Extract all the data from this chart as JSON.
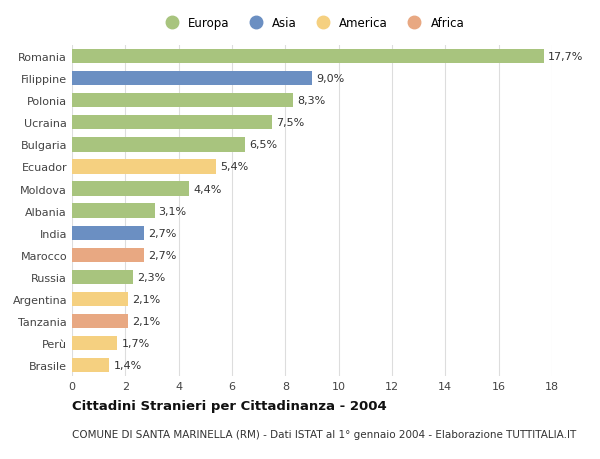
{
  "countries": [
    "Romania",
    "Filippine",
    "Polonia",
    "Ucraina",
    "Bulgaria",
    "Ecuador",
    "Moldova",
    "Albania",
    "India",
    "Marocco",
    "Russia",
    "Argentina",
    "Tanzania",
    "Perù",
    "Brasile"
  ],
  "values": [
    17.7,
    9.0,
    8.3,
    7.5,
    6.5,
    5.4,
    4.4,
    3.1,
    2.7,
    2.7,
    2.3,
    2.1,
    2.1,
    1.7,
    1.4
  ],
  "labels": [
    "17,7%",
    "9,0%",
    "8,3%",
    "7,5%",
    "6,5%",
    "5,4%",
    "4,4%",
    "3,1%",
    "2,7%",
    "2,7%",
    "2,3%",
    "2,1%",
    "2,1%",
    "1,7%",
    "1,4%"
  ],
  "continents": [
    "Europa",
    "Asia",
    "Europa",
    "Europa",
    "Europa",
    "America",
    "Europa",
    "Europa",
    "Asia",
    "Africa",
    "Europa",
    "America",
    "Africa",
    "America",
    "America"
  ],
  "continent_colors": {
    "Europa": "#a8c47e",
    "Asia": "#6b8fc2",
    "America": "#f5d080",
    "Africa": "#e8a882"
  },
  "legend_order": [
    "Europa",
    "Asia",
    "America",
    "Africa"
  ],
  "title": "Cittadini Stranieri per Cittadinanza - 2004",
  "subtitle": "COMUNE DI SANTA MARINELLA (RM) - Dati ISTAT al 1° gennaio 2004 - Elaborazione TUTTITALIA.IT",
  "xlim": [
    0,
    18
  ],
  "xticks": [
    0,
    2,
    4,
    6,
    8,
    10,
    12,
    14,
    16,
    18
  ],
  "background_color": "#ffffff",
  "grid_color": "#dddddd",
  "bar_height": 0.65,
  "label_fontsize": 8,
  "tick_fontsize": 8,
  "title_fontsize": 9.5,
  "subtitle_fontsize": 7.5
}
